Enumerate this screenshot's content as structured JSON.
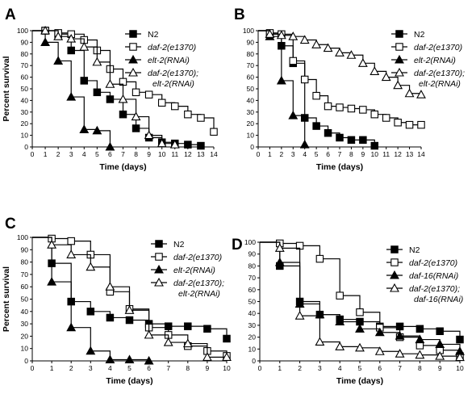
{
  "chart_data": [
    {
      "type": "line",
      "panel_label": "A",
      "xlabel": "Time (days)",
      "ylabel": "Percent survival",
      "xlim": [
        0,
        14
      ],
      "ylim": [
        0,
        100
      ],
      "xticks": [
        "0",
        "1",
        "2",
        "3",
        "4",
        "5",
        "6",
        "7",
        "8",
        "9",
        "10",
        "11",
        "12",
        "13",
        "14"
      ],
      "yticks": [
        "0",
        "10",
        "20",
        "30",
        "40",
        "50",
        "60",
        "70",
        "80",
        "90",
        "100"
      ],
      "series": [
        {
          "name": "N2",
          "marker": "filled-square",
          "x": [
            1,
            2,
            3,
            4,
            5,
            6,
            7,
            8,
            9,
            10,
            11,
            12,
            13
          ],
          "y": [
            100,
            97,
            83,
            57,
            47,
            41,
            28,
            16,
            8,
            4,
            3,
            2,
            1
          ]
        },
        {
          "name": "daf-2(e1370)",
          "marker": "open-square",
          "x": [
            1,
            2,
            3,
            4,
            5,
            6,
            7,
            8,
            9,
            10,
            11,
            12,
            13,
            14
          ],
          "y": [
            100,
            98,
            97,
            92,
            83,
            67,
            56,
            47,
            45,
            38,
            35,
            28,
            25,
            13
          ]
        },
        {
          "name": "elt-2(RNAi)",
          "marker": "filled-triangle",
          "x": [
            1,
            2,
            3,
            4,
            5,
            6
          ],
          "y": [
            90,
            74,
            43,
            15,
            14,
            0
          ]
        },
        {
          "name": "daf-2(e1370); elt-2(RNAi)",
          "marker": "open-triangle",
          "x": [
            1,
            2,
            3,
            4,
            5,
            6,
            7,
            8,
            9,
            10,
            11
          ],
          "y": [
            100,
            95,
            93,
            86,
            73,
            54,
            41,
            26,
            10,
            3,
            2
          ]
        }
      ],
      "legend": [
        {
          "label": "N2",
          "marker": "filled-square"
        },
        {
          "label": "daf-2(e1370)",
          "marker": "open-square"
        },
        {
          "label": "elt-2(RNAi)",
          "marker": "filled-triangle"
        },
        {
          "label": "daf-2(e1370);",
          "label2": "elt-2(RNAi)",
          "marker": "open-triangle"
        }
      ]
    },
    {
      "type": "line",
      "panel_label": "B",
      "xlabel": "Time (days)",
      "ylabel": "",
      "xlim": [
        0,
        14
      ],
      "ylim": [
        0,
        100
      ],
      "xticks": [
        "0",
        "1",
        "2",
        "3",
        "4",
        "5",
        "6",
        "7",
        "8",
        "9",
        "10",
        "11",
        "12",
        "13",
        "14"
      ],
      "yticks": [
        "0",
        "10",
        "20",
        "30",
        "40",
        "50",
        "60",
        "70",
        "80",
        "90",
        "100"
      ],
      "series": [
        {
          "name": "N2",
          "marker": "filled-square",
          "x": [
            1,
            2,
            3,
            4,
            5,
            6,
            7,
            8,
            9,
            10
          ],
          "y": [
            97,
            87,
            72,
            25,
            18,
            12,
            8,
            6,
            6,
            1
          ]
        },
        {
          "name": "daf-2(e1370)",
          "marker": "open-square",
          "x": [
            1,
            2,
            3,
            4,
            5,
            6,
            7,
            8,
            9,
            10,
            11,
            12,
            13,
            14
          ],
          "y": [
            98,
            97,
            74,
            58,
            44,
            35,
            34,
            33,
            32,
            28,
            25,
            21,
            19,
            19
          ]
        },
        {
          "name": "elt-2(RNAi)",
          "marker": "filled-triangle",
          "x": [
            1,
            2,
            3,
            4
          ],
          "y": [
            95,
            57,
            27,
            2
          ]
        },
        {
          "name": "daf-2(e1370); elt-2(RNAi)",
          "marker": "open-triangle",
          "x": [
            1,
            2,
            3,
            4,
            5,
            6,
            7,
            8,
            9,
            10,
            11,
            12,
            13,
            14
          ],
          "y": [
            97,
            96,
            95,
            92,
            88,
            85,
            81,
            79,
            72,
            65,
            60,
            53,
            46,
            45
          ]
        }
      ],
      "legend": [
        {
          "label": "N2",
          "marker": "filled-square"
        },
        {
          "label": "daf-2(e1370)",
          "marker": "open-square"
        },
        {
          "label": "elt-2(RNAi)",
          "marker": "filled-triangle"
        },
        {
          "label": "daf-2(e1370);",
          "label2": "elt-2(RNAi)",
          "marker": "open-triangle"
        }
      ]
    },
    {
      "type": "line",
      "panel_label": "C",
      "xlabel": "Time (days)",
      "ylabel": "Percent survival",
      "xlim": [
        0,
        10
      ],
      "ylim": [
        0,
        100
      ],
      "xticks": [
        "0",
        "1",
        "2",
        "3",
        "4",
        "5",
        "6",
        "7",
        "8",
        "9",
        "10"
      ],
      "yticks": [
        "0",
        "10",
        "20",
        "30",
        "40",
        "50",
        "60",
        "70",
        "80",
        "90",
        "100"
      ],
      "series": [
        {
          "name": "N2",
          "marker": "filled-square",
          "x": [
            1,
            2,
            3,
            4,
            5,
            6,
            7,
            8,
            9,
            10
          ],
          "y": [
            79,
            48,
            40,
            35,
            33,
            30,
            28,
            28,
            26,
            18
          ]
        },
        {
          "name": "daf-2(e1370)",
          "marker": "open-square",
          "x": [
            1,
            2,
            3,
            4,
            5,
            6,
            7,
            8,
            9,
            10
          ],
          "y": [
            99,
            97,
            86,
            56,
            42,
            27,
            21,
            12,
            8,
            4
          ]
        },
        {
          "name": "elt-2(RNAi)",
          "marker": "filled-triangle",
          "x": [
            1,
            2,
            3,
            4,
            5,
            6
          ],
          "y": [
            64,
            27,
            8,
            1,
            1,
            0
          ]
        },
        {
          "name": "daf-2(e1370); elt-2(RNAi)",
          "marker": "open-triangle",
          "x": [
            1,
            2,
            3,
            4,
            5,
            6,
            7,
            8,
            9,
            10
          ],
          "y": [
            94,
            86,
            76,
            60,
            41,
            21,
            15,
            14,
            3,
            3
          ]
        }
      ],
      "legend": [
        {
          "label": "N2",
          "marker": "filled-square"
        },
        {
          "label": "daf-2(e1370)",
          "marker": "open-square"
        },
        {
          "label": "elt-2(RNAi)",
          "marker": "filled-triangle"
        },
        {
          "label": "daf-2(e1370);",
          "label2": "elt-2(RNAi)",
          "marker": "open-triangle"
        }
      ]
    },
    {
      "type": "line",
      "panel_label": "D",
      "xlabel": "Time (days)",
      "ylabel": "",
      "xlim": [
        0,
        10
      ],
      "ylim": [
        0,
        100
      ],
      "xticks": [
        "0",
        "1",
        "2",
        "3",
        "4",
        "5",
        "6",
        "7",
        "8",
        "9",
        "10"
      ],
      "yticks": [
        "0",
        "10",
        "20",
        "30",
        "40",
        "50",
        "60",
        "70",
        "80",
        "90",
        "100"
      ],
      "series": [
        {
          "name": "N2",
          "marker": "filled-square",
          "x": [
            1,
            2,
            3,
            4,
            5,
            6,
            7,
            8,
            9,
            10
          ],
          "y": [
            80,
            50,
            39,
            35,
            33,
            29,
            29,
            27,
            25,
            18
          ]
        },
        {
          "name": "daf-2(e1370)",
          "marker": "open-square",
          "x": [
            1,
            2,
            3,
            4,
            5,
            6,
            7,
            8,
            9,
            10
          ],
          "y": [
            99,
            97,
            86,
            55,
            41,
            28,
            20,
            13,
            9,
            4
          ]
        },
        {
          "name": "daf-16(RNAi)",
          "marker": "filled-triangle",
          "x": [
            1,
            2,
            3,
            4,
            5,
            6,
            7,
            8,
            9,
            10
          ],
          "y": [
            83,
            48,
            39,
            33,
            27,
            24,
            21,
            18,
            14,
            8
          ]
        },
        {
          "name": "daf-2(e1370); daf-16(RNAi)",
          "marker": "open-triangle",
          "x": [
            1,
            2,
            3,
            4,
            5,
            6,
            7,
            8,
            9,
            10
          ],
          "y": [
            95,
            38,
            16,
            12,
            11,
            8,
            6,
            5,
            4,
            3
          ]
        }
      ],
      "legend": [
        {
          "label": "N2",
          "marker": "filled-square"
        },
        {
          "label": "daf-2(e1370)",
          "marker": "open-square"
        },
        {
          "label": "daf-16(RNAi)",
          "marker": "filled-triangle"
        },
        {
          "label": "daf-2(e1370);",
          "label2": "daf-16(RNAi)",
          "marker": "open-triangle"
        }
      ]
    }
  ]
}
